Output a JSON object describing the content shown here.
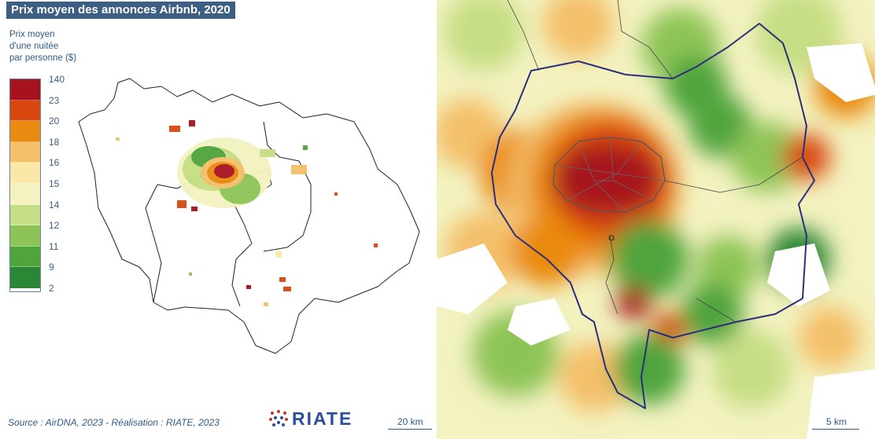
{
  "title": "Prix moyen des annonces Airbnb, 2020",
  "legend": {
    "title": "Prix moyen\nd'une nuitée\npar personne ($)",
    "labels": [
      "140",
      "23",
      "20",
      "18",
      "16",
      "15",
      "14",
      "12",
      "11",
      "9",
      "2"
    ],
    "colors": [
      "#a6121e",
      "#d9470e",
      "#ea8a10",
      "#f4c06a",
      "#fbe8a6",
      "#f3f2c0",
      "#c6de84",
      "#8ec456",
      "#4fa43c",
      "#2a8736",
      "#0f6530"
    ]
  },
  "source": "Source : AirDNA, 2023 - Réalisation : RIATE, 2023",
  "logo": "RIATE",
  "scale_left": "20 km",
  "scale_right": "5 km"
}
